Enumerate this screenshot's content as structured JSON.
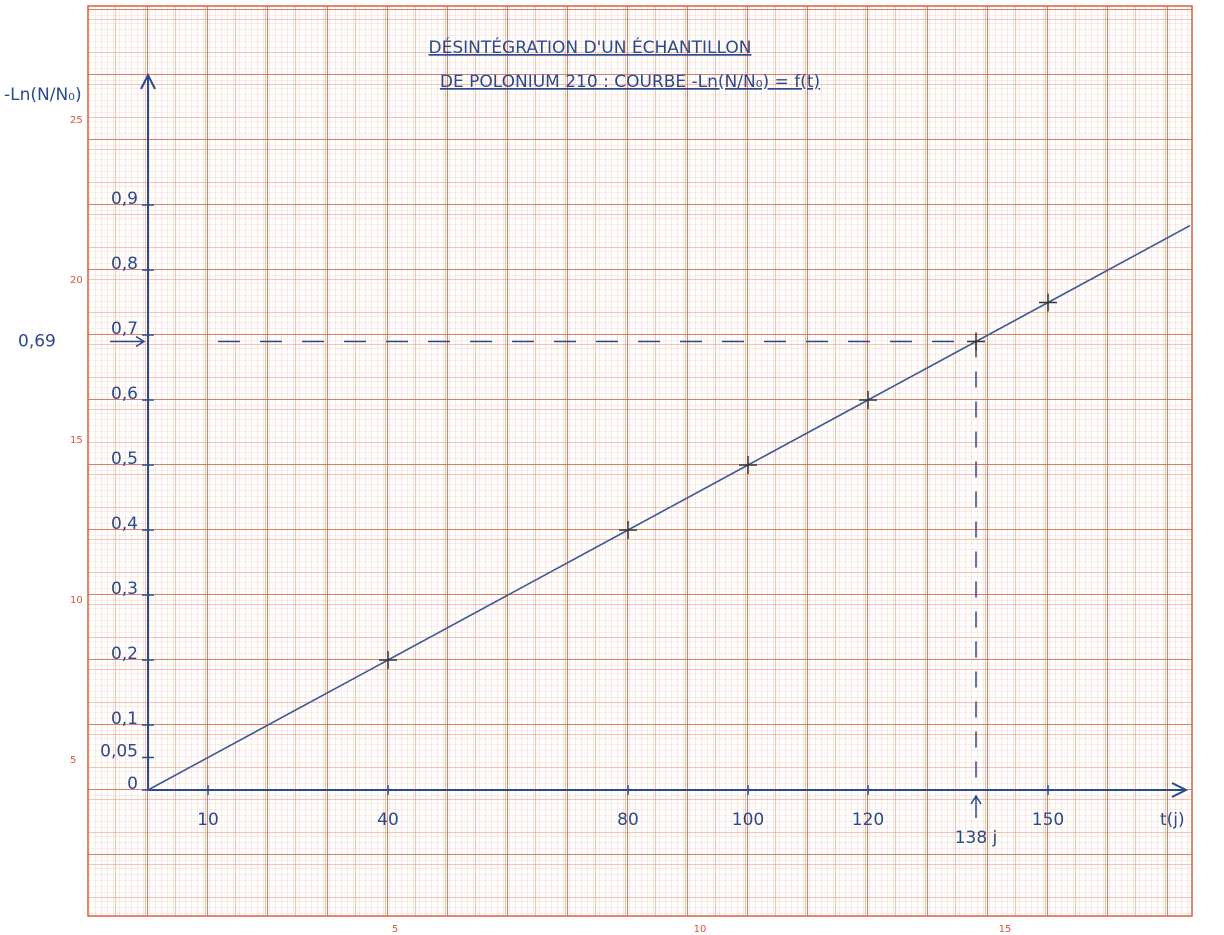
{
  "chart_data": {
    "type": "line",
    "title": [
      "DÉSINTÉGRATION D'UN ÉCHANTILLON",
      "DE POLONIUM 210 : COURBE -Ln(N/N₀) = f(t)"
    ],
    "y_label": "-Ln(N/N₀)",
    "x_label": "t(j)",
    "x": [
      0,
      40,
      80,
      100,
      120,
      138,
      150
    ],
    "series": [
      {
        "color": "#3a5a9a",
        "values": [
          0,
          0.2,
          0.4,
          0.5,
          0.6,
          0.69,
          0.75
        ]
      }
    ],
    "xlim": [
      0,
      175
    ],
    "ylim": [
      0,
      1.1
    ],
    "xticks": [
      10,
      40,
      80,
      100,
      120,
      150
    ],
    "yticks": [
      {
        "value": 0,
        "label": "0"
      },
      {
        "value": 0.05,
        "label": "0,05"
      },
      {
        "value": 0.1,
        "label": "0,1"
      },
      {
        "value": 0.2,
        "label": "0,2"
      },
      {
        "value": 0.3,
        "label": "0,3"
      },
      {
        "value": 0.4,
        "label": "0,4"
      },
      {
        "value": 0.5,
        "label": "0,5"
      },
      {
        "value": 0.6,
        "label": "0,6"
      },
      {
        "value": 0.7,
        "label": "0,7"
      },
      {
        "value": 0.8,
        "label": "0,8"
      },
      {
        "value": 0.9,
        "label": "0,9"
      }
    ],
    "annotations": [
      {
        "text": "0,69",
        "y": 0.69
      },
      {
        "text": "138 j",
        "x": 138
      }
    ]
  },
  "graph_paper": {
    "left_labels": [
      25,
      20,
      15,
      10,
      5
    ],
    "bottom_labels": [
      5,
      10,
      15
    ]
  }
}
